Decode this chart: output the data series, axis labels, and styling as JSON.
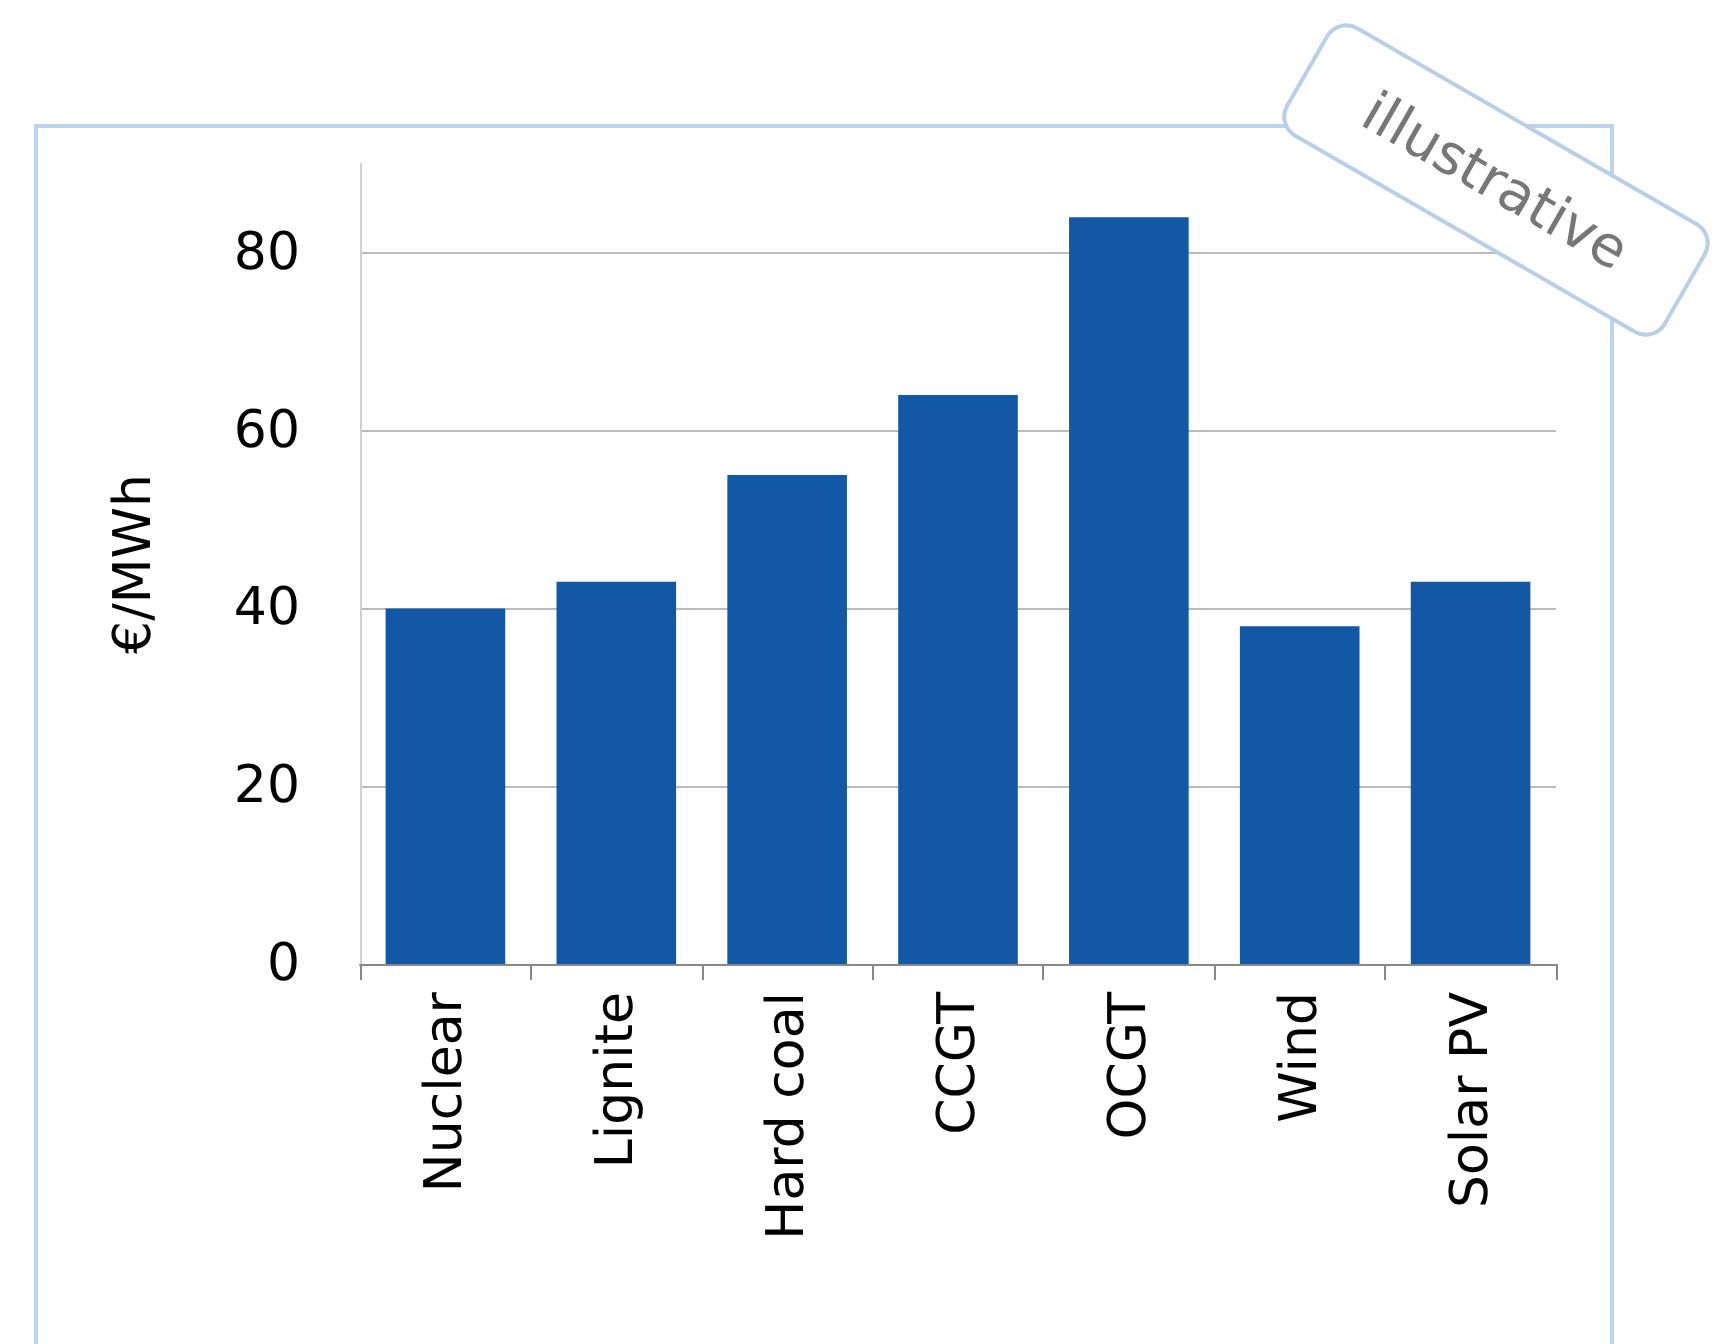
{
  "chart_data": {
    "type": "bar",
    "ylabel": "€/MWh",
    "categories": [
      "Nuclear",
      "Lignite",
      "Hard coal",
      "CCGT",
      "OCGT",
      "Wind",
      "Solar PV"
    ],
    "values": [
      40,
      43,
      55,
      64,
      84,
      38,
      43
    ],
    "color": "#1358a5",
    "ylim": [
      0,
      90
    ],
    "yticks": [
      0,
      20,
      40,
      60,
      80
    ],
    "grid": "y",
    "annotations": [
      "illustrative"
    ]
  }
}
